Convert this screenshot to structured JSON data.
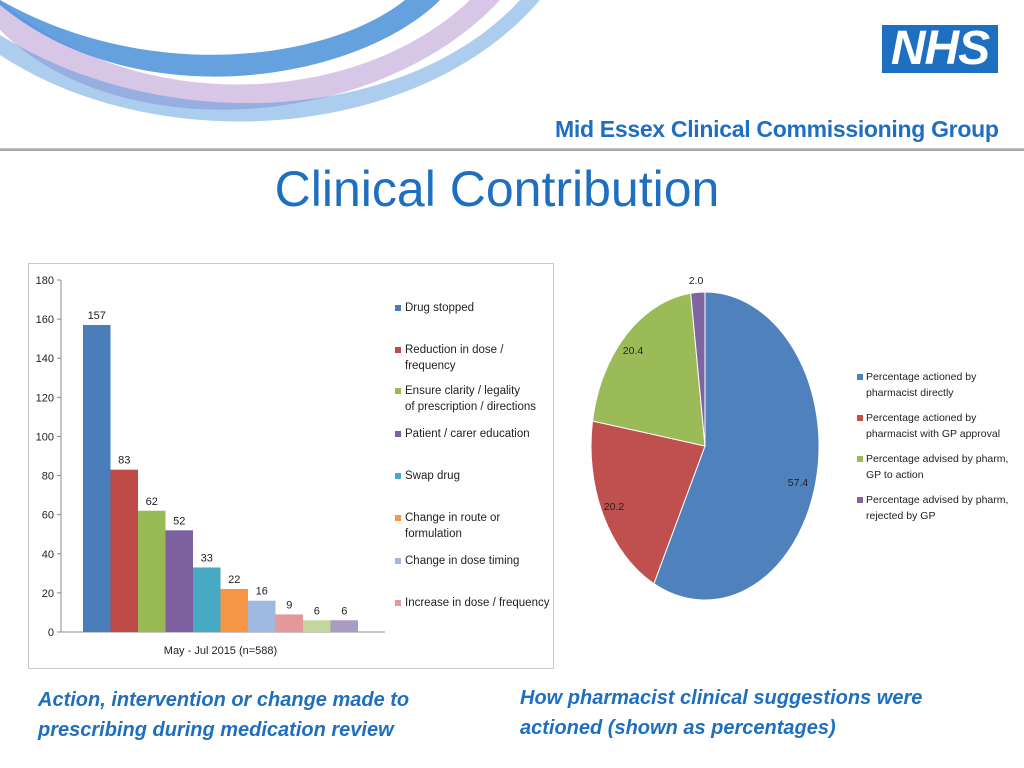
{
  "header": {
    "logo_text": "NHS",
    "org_name": "Mid Essex Clinical Commissioning Group"
  },
  "title": "Clinical Contribution",
  "captions": {
    "left": "Action, intervention or change made to prescribing during medication review",
    "right": "How pharmacist clinical suggestions were actioned (shown as percentages)"
  },
  "colors": {
    "brand_blue": "#1f6fc0",
    "swoosh_blue": "#4a90d9",
    "swoosh_lavender": "#c9b3dc"
  },
  "chart_data": [
    {
      "type": "bar",
      "xlabel": "May - Jul 2015 (n=588)",
      "ylim": [
        0,
        180
      ],
      "yticks": [
        0,
        20,
        40,
        60,
        80,
        100,
        120,
        140,
        160,
        180
      ],
      "grid": false,
      "legend_position": "right",
      "series": [
        {
          "name": "Drug stopped",
          "values": [
            157
          ],
          "color": "#4a7ebb"
        },
        {
          "name": "Reduction in dose / frequency",
          "values": [
            83
          ],
          "color": "#be4b48"
        },
        {
          "name": "Ensure clarity / legality of prescription / directions",
          "values": [
            62
          ],
          "color": "#98b954"
        },
        {
          "name": "Patient / carer education",
          "values": [
            52
          ],
          "color": "#7d60a0"
        },
        {
          "name": "Swap drug",
          "values": [
            33
          ],
          "color": "#46aac5"
        },
        {
          "name": "Change in route or formulation",
          "values": [
            22
          ],
          "color": "#f79646"
        },
        {
          "name": "Change in dose timing",
          "values": [
            16
          ],
          "color": "#9eb8e0"
        },
        {
          "name": "Increase in dose / frequency",
          "values": [
            9
          ],
          "color": "#e3989a"
        },
        {
          "name": "",
          "values": [
            6
          ],
          "color": "#c3d69b"
        },
        {
          "name": "",
          "values": [
            6
          ],
          "color": "#aa9bc3"
        }
      ]
    },
    {
      "type": "pie",
      "legend_position": "right",
      "slices": [
        {
          "label": "Percentage actioned by pharmacist directly",
          "value": 57.4,
          "display": "57.4",
          "color": "#4f81bd"
        },
        {
          "label": "Percentage actioned by pharmacist with GP approval",
          "value": 20.2,
          "display": "20.2",
          "color": "#c0504d"
        },
        {
          "label": "Percentage advised by pharm, GP to action",
          "value": 20.4,
          "display": "20.4",
          "color": "#9bbb59"
        },
        {
          "label": "Percentage advised by pharm, rejected by GP",
          "value": 2.0,
          "display": "2.0",
          "color": "#8064a2"
        }
      ]
    }
  ]
}
